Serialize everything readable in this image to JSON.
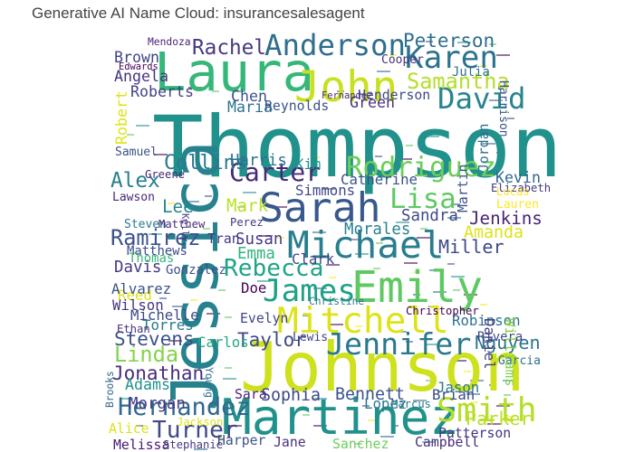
{
  "title": "Generative AI Name Cloud: insurancesalesagent",
  "chart_data": {
    "type": "wordcloud",
    "title": "Generative AI Name Cloud: insurancesalesagent",
    "palette": "viridis",
    "words": [
      {
        "text": "Thompson",
        "weight": 100,
        "color": "#21918c",
        "rotate": 0
      },
      {
        "text": "Johnson",
        "weight": 78,
        "color": "#cde11d",
        "rotate": 0
      },
      {
        "text": "Jessica",
        "weight": 74,
        "color": "#26828e",
        "rotate": 270
      },
      {
        "text": "Laura",
        "weight": 60,
        "color": "#35b779",
        "rotate": 0
      },
      {
        "text": "Martinez",
        "weight": 55,
        "color": "#21918c",
        "rotate": 0
      },
      {
        "text": "Emily",
        "weight": 48,
        "color": "#5ec962",
        "rotate": 0
      },
      {
        "text": "John",
        "weight": 47,
        "color": "#c8e020",
        "rotate": 0
      },
      {
        "text": "Sarah",
        "weight": 44,
        "color": "#38588c",
        "rotate": 0
      },
      {
        "text": "Michael",
        "weight": 40,
        "color": "#287d8e",
        "rotate": 0
      },
      {
        "text": "Mitchell",
        "weight": 38,
        "color": "#dde318",
        "rotate": 0
      },
      {
        "text": "Smith",
        "weight": 35,
        "color": "#b5de2b",
        "rotate": 0
      },
      {
        "text": "Karen",
        "weight": 32,
        "color": "#2c728e",
        "rotate": 0
      },
      {
        "text": "James",
        "weight": 32,
        "color": "#1fa187",
        "rotate": 0
      },
      {
        "text": "Jennifer",
        "weight": 31,
        "color": "#2a788e",
        "rotate": 0
      },
      {
        "text": "Anderson",
        "weight": 30,
        "color": "#2e6e8e",
        "rotate": 0
      },
      {
        "text": "David",
        "weight": 30,
        "color": "#25848e",
        "rotate": 0
      },
      {
        "text": "Rodriguez",
        "weight": 28,
        "color": "#6ccd5a",
        "rotate": 0
      },
      {
        "text": "Lisa",
        "weight": 28,
        "color": "#5ec962",
        "rotate": 0
      },
      {
        "text": "Carter",
        "weight": 25,
        "color": "#482878",
        "rotate": 0
      },
      {
        "text": "Hernandez",
        "weight": 24,
        "color": "#31688e",
        "rotate": 0
      },
      {
        "text": "Turner",
        "weight": 23,
        "color": "#3e4989",
        "rotate": 0
      },
      {
        "text": "Rebecca",
        "weight": 23,
        "color": "#20a486",
        "rotate": 0
      },
      {
        "text": "Samantha",
        "weight": 20,
        "color": "#b5de2b",
        "rotate": 0
      },
      {
        "text": "Ramirez",
        "weight": 20,
        "color": "#3b528b",
        "rotate": 0
      },
      {
        "text": "Linda",
        "weight": 20,
        "color": "#84d44b",
        "rotate": 0
      },
      {
        "text": "Rachel",
        "weight": 19,
        "color": "#443983",
        "rotate": 0
      },
      {
        "text": "Alex",
        "weight": 19,
        "color": "#277f8e",
        "rotate": 0
      },
      {
        "text": "Collins",
        "weight": 18,
        "color": "#2a788e",
        "rotate": 0
      },
      {
        "text": "Peterson",
        "weight": 17,
        "color": "#2e6e8e",
        "rotate": 0
      },
      {
        "text": "Stevens",
        "weight": 17,
        "color": "#3b528b",
        "rotate": 0
      },
      {
        "text": "Jonathan",
        "weight": 17,
        "color": "#472d7b",
        "rotate": 0
      },
      {
        "text": "Taylor",
        "weight": 17,
        "color": "#3e4989",
        "rotate": 0
      },
      {
        "text": "Nguyen",
        "weight": 16,
        "color": "#2c728e",
        "rotate": 0
      },
      {
        "text": "Parker",
        "weight": 16,
        "color": "#bddf26",
        "rotate": 0
      },
      {
        "text": "Miller",
        "weight": 16,
        "color": "#3e4989",
        "rotate": 0
      },
      {
        "text": "Jenkins",
        "weight": 15,
        "color": "#482475",
        "rotate": 0
      },
      {
        "text": "Mark",
        "weight": 15,
        "color": "#bddf26",
        "rotate": 0
      },
      {
        "text": "Lee",
        "weight": 15,
        "color": "#23898e",
        "rotate": 0
      },
      {
        "text": "Bennett",
        "weight": 14,
        "color": "#3b528b",
        "rotate": 0
      },
      {
        "text": "Amanda",
        "weight": 14,
        "color": "#dde318",
        "rotate": 0
      },
      {
        "text": "Sophia",
        "weight": 14,
        "color": "#3e4989",
        "rotate": 0
      },
      {
        "text": "Morales",
        "weight": 13,
        "color": "#26828e",
        "rotate": 0
      },
      {
        "text": "Harris",
        "weight": 13,
        "color": "#2c728e",
        "rotate": 0
      },
      {
        "text": "Davis",
        "weight": 13,
        "color": "#443983",
        "rotate": 0
      },
      {
        "text": "Sandra",
        "weight": 13,
        "color": "#3e4989",
        "rotate": 0
      },
      {
        "text": "Susan",
        "weight": 13,
        "color": "#443983",
        "rotate": 0
      },
      {
        "text": "Emma",
        "weight": 13,
        "color": "#2fb47c",
        "rotate": 0
      },
      {
        "text": "Morgan",
        "weight": 13,
        "color": "#443983",
        "rotate": 0
      },
      {
        "text": "Adams",
        "weight": 12,
        "color": "#21918c",
        "rotate": 0
      },
      {
        "text": "Brown",
        "weight": 12,
        "color": "#414487",
        "rotate": 0
      },
      {
        "text": "Angela",
        "weight": 12,
        "color": "#453581",
        "rotate": 0
      },
      {
        "text": "Roberts",
        "weight": 12,
        "color": "#414487",
        "rotate": 0
      },
      {
        "text": "Maria",
        "weight": 12,
        "color": "#2c728e",
        "rotate": 0
      },
      {
        "text": "Chen",
        "weight": 12,
        "color": "#3b528b",
        "rotate": 0
      },
      {
        "text": "Green",
        "weight": 12,
        "color": "#46327e",
        "rotate": 0
      },
      {
        "text": "Kevin",
        "weight": 12,
        "color": "#31688e",
        "rotate": 0
      },
      {
        "text": "Simmons",
        "weight": 11,
        "color": "#404688",
        "rotate": 0
      },
      {
        "text": "Catherine",
        "weight": 11,
        "color": "#3b528b",
        "rotate": 0
      },
      {
        "text": "Kim",
        "weight": 11,
        "color": "#21918c",
        "rotate": 0
      },
      {
        "text": "Evelyn",
        "weight": 10,
        "color": "#404688",
        "rotate": 0
      },
      {
        "text": "Torres",
        "weight": 11,
        "color": "#2a788e",
        "rotate": 0
      },
      {
        "text": "Reed",
        "weight": 11,
        "color": "#dde318",
        "rotate": 0
      },
      {
        "text": "Alvarez",
        "weight": 11,
        "color": "#3b528b",
        "rotate": 0
      },
      {
        "text": "Wilson",
        "weight": 11,
        "color": "#453581",
        "rotate": 0
      },
      {
        "text": "Michelle",
        "weight": 11,
        "color": "#3e4989",
        "rotate": 0
      },
      {
        "text": "Clark",
        "weight": 11,
        "color": "#404688",
        "rotate": 0
      },
      {
        "text": "Doe",
        "weight": 11,
        "color": "#440154",
        "rotate": 0
      },
      {
        "text": "Carlos",
        "weight": 11,
        "color": "#22a884",
        "rotate": 0
      },
      {
        "text": "Robinson",
        "weight": 11,
        "color": "#2c728e",
        "rotate": 0
      },
      {
        "text": "Brian",
        "weight": 11,
        "color": "#3e4989",
        "rotate": 0
      },
      {
        "text": "Jason",
        "weight": 11,
        "color": "#2a788e",
        "rotate": 0
      },
      {
        "text": "Lopez",
        "weight": 11,
        "color": "#2a788e",
        "rotate": 0
      },
      {
        "text": "Sara",
        "weight": 10,
        "color": "#482475",
        "rotate": 0
      },
      {
        "text": "Alice",
        "weight": 10,
        "color": "#dde318",
        "rotate": 0
      },
      {
        "text": "Melissa",
        "weight": 10,
        "color": "#481a6c",
        "rotate": 0
      },
      {
        "text": "Harper",
        "weight": 10,
        "color": "#3b528b",
        "rotate": 0
      },
      {
        "text": "Jane",
        "weight": 10,
        "color": "#46327e",
        "rotate": 0
      },
      {
        "text": "Sanchez",
        "weight": 10,
        "color": "#6ccd5a",
        "rotate": 0
      },
      {
        "text": "Campbell",
        "weight": 10,
        "color": "#472d7b",
        "rotate": 0
      },
      {
        "text": "Patterson",
        "weight": 10,
        "color": "#453581",
        "rotate": 0
      },
      {
        "text": "Henderson",
        "weight": 10,
        "color": "#3e4989",
        "rotate": 0
      },
      {
        "text": "Reynolds",
        "weight": 10,
        "color": "#3b528b",
        "rotate": 0
      },
      {
        "text": "Julia",
        "weight": 9,
        "color": "#2c728e",
        "rotate": 0
      },
      {
        "text": "Cooper",
        "weight": 8,
        "color": "#453581",
        "rotate": 0
      },
      {
        "text": "Samuel",
        "weight": 8,
        "color": "#3b528b",
        "rotate": 0
      },
      {
        "text": "Lawson",
        "weight": 8,
        "color": "#482878",
        "rotate": 0
      },
      {
        "text": "Greene",
        "weight": 7,
        "color": "#482878",
        "rotate": 0
      },
      {
        "text": "Lauren",
        "weight": 8,
        "color": "#fde725",
        "rotate": 0
      },
      {
        "text": "Elizabeth",
        "weight": 7,
        "color": "#443983",
        "rotate": 0
      },
      {
        "text": "Lucas",
        "weight": 7,
        "color": "#fde725",
        "rotate": 0
      },
      {
        "text": "Steven",
        "weight": 8,
        "color": "#2a788e",
        "rotate": 0
      },
      {
        "text": "Matthew",
        "weight": 7,
        "color": "#472d7b",
        "rotate": 0
      },
      {
        "text": "Matthews",
        "weight": 9,
        "color": "#3e4989",
        "rotate": 0
      },
      {
        "text": "Thomas",
        "weight": 9,
        "color": "#35b779",
        "rotate": 0
      },
      {
        "text": "Gonzalez",
        "weight": 9,
        "color": "#3b528b",
        "rotate": 0
      },
      {
        "text": "Tran",
        "weight": 10,
        "color": "#453581",
        "rotate": 0
      },
      {
        "text": "Perez",
        "weight": 7,
        "color": "#453581",
        "rotate": 0
      },
      {
        "text": "Ethan",
        "weight": 7,
        "color": "#46327e",
        "rotate": 0
      },
      {
        "text": "Lewis",
        "weight": 8,
        "color": "#414487",
        "rotate": 0
      },
      {
        "text": "Christopher",
        "weight": 7,
        "color": "#440154",
        "rotate": 0
      },
      {
        "text": "Christine",
        "weight": 6,
        "color": "#2a788e",
        "rotate": 0
      },
      {
        "text": "Rivera",
        "weight": 9,
        "color": "#3e4989",
        "rotate": 0
      },
      {
        "text": "Garcia",
        "weight": 8,
        "color": "#2c728e",
        "rotate": 0
      },
      {
        "text": "Marcus",
        "weight": 7,
        "color": "#2a788e",
        "rotate": 0
      },
      {
        "text": "Jackson",
        "weight": 7,
        "color": "#dde318",
        "rotate": 0
      },
      {
        "text": "Stephanie",
        "weight": 7,
        "color": "#443983",
        "rotate": 0
      },
      {
        "text": "Edwards",
        "weight": 5,
        "color": "#440154",
        "rotate": 0
      },
      {
        "text": "Mendoza",
        "weight": 6,
        "color": "#482475",
        "rotate": 0
      },
      {
        "text": "Fernandez",
        "weight": 5,
        "color": "#482878",
        "rotate": 0
      },
      {
        "text": "Daniel",
        "weight": 11,
        "color": "#433e85",
        "rotate": 90
      },
      {
        "text": "Williams",
        "weight": 11,
        "color": "#84d44b",
        "rotate": 90
      },
      {
        "text": "Robert",
        "weight": 12,
        "color": "#dde318",
        "rotate": 270
      },
      {
        "text": "Jordan",
        "weight": 10,
        "color": "#2e6e8e",
        "rotate": 270
      },
      {
        "text": "Martin",
        "weight": 10,
        "color": "#3b528b",
        "rotate": 270
      },
      {
        "text": "Harrison",
        "weight": 8,
        "color": "#3b528b",
        "rotate": 90
      },
      {
        "text": "Brooks",
        "weight": 6,
        "color": "#31688e",
        "rotate": 270
      },
      {
        "text": "Young",
        "weight": 6,
        "color": "#2c728e",
        "rotate": 90
      },
      {
        "text": "Kelly",
        "weight": 5,
        "color": "#453581",
        "rotate": 90
      }
    ]
  }
}
